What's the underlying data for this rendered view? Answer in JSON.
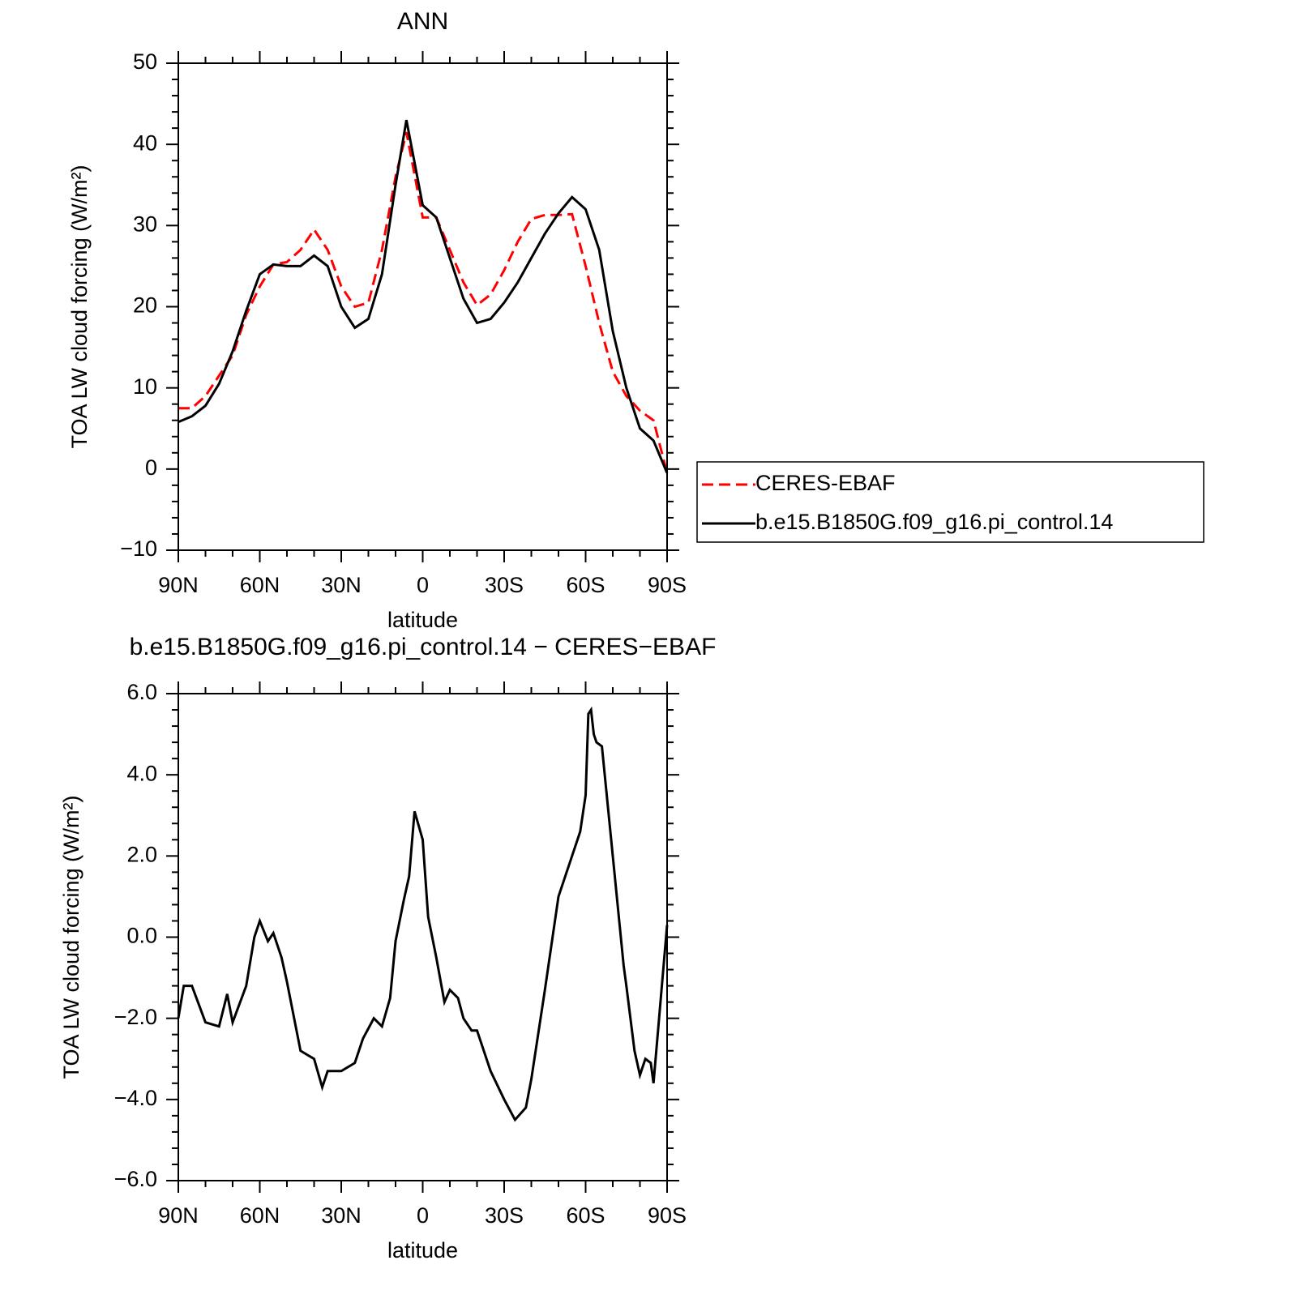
{
  "chart_data": [
    {
      "type": "line",
      "title": "ANN",
      "xlabel": "latitude",
      "ylabel": "TOA LW cloud forcing (W/m²)",
      "x": [
        90,
        85,
        80,
        75,
        70,
        65,
        60,
        55,
        50,
        45,
        40,
        35,
        30,
        25,
        20,
        15,
        10,
        6,
        0,
        -5,
        -10,
        -15,
        -20,
        -25,
        -30,
        -35,
        -40,
        -45,
        -50,
        -55,
        -60,
        -65,
        -70,
        -75,
        -80,
        -85,
        -90
      ],
      "series": [
        {
          "name": "CERES-EBAF",
          "color": "#ff0000",
          "line_style": "dashed",
          "values": [
            7.5,
            7.5,
            9,
            11.5,
            14,
            19,
            22.5,
            25.2,
            25.5,
            27,
            29.5,
            27,
            22.5,
            20,
            20.5,
            27,
            36,
            41.5,
            31,
            31,
            27,
            23,
            20.2,
            21.5,
            24.5,
            28,
            30.8,
            31.3,
            31.3,
            31.4,
            25,
            18,
            12,
            9,
            7.2,
            6,
            -0.5
          ]
        },
        {
          "name": "b.e15.B1850G.f09_g16.pi_control.14",
          "color": "#000000",
          "line_style": "solid",
          "values": [
            5.8,
            6.5,
            7.8,
            10.5,
            14.5,
            19.5,
            24,
            25.2,
            25,
            25,
            26.3,
            25,
            20,
            17.4,
            18.5,
            24,
            35,
            43,
            32.5,
            31,
            26,
            21,
            18,
            18.5,
            20.5,
            23,
            26,
            29,
            31.5,
            33.5,
            32,
            27,
            17,
            10,
            5,
            3.5,
            -0.5
          ]
        }
      ],
      "xlim": [
        90,
        -90
      ],
      "xticks": [
        {
          "value": 90,
          "label": "90N"
        },
        {
          "value": 60,
          "label": "60N"
        },
        {
          "value": 30,
          "label": "30N"
        },
        0,
        {
          "value": -30,
          "label": "30S"
        },
        {
          "value": -60,
          "label": "60S"
        },
        {
          "value": -90,
          "label": "90S"
        }
      ],
      "ylim": [
        -10,
        50
      ],
      "yticks": [
        {
          "value": -10,
          "label": "−10"
        },
        0,
        10,
        20,
        30,
        40,
        50
      ],
      "grid": false,
      "legend": "right"
    },
    {
      "type": "line",
      "title": "b.e15.B1850G.f09_g16.pi_control.14 − CERES−EBAF",
      "xlabel": "latitude",
      "ylabel": "TOA LW cloud forcing (W/m²)",
      "x": [
        90,
        88,
        85,
        80,
        75,
        72,
        70,
        65,
        62,
        60,
        57,
        55,
        52,
        50,
        45,
        40,
        37,
        35,
        30,
        25,
        22,
        18,
        15,
        12,
        10,
        7,
        5,
        3,
        0,
        -2,
        -5,
        -8,
        -10,
        -13,
        -15,
        -18,
        -20,
        -25,
        -30,
        -34,
        -38,
        -40,
        -45,
        -50,
        -55,
        -58,
        -60,
        -61,
        -62,
        -63,
        -64,
        -66,
        -70,
        -74,
        -75,
        -78,
        -80,
        -82,
        -84,
        -85,
        -90
      ],
      "series": [
        {
          "name": "b.e15.B1850G.f09_g16.pi_control.14 − CERES−EBAF",
          "color": "#000000",
          "line_style": "solid",
          "values": [
            -2,
            -1.2,
            -1.2,
            -2.1,
            -2.2,
            -1.4,
            -2.1,
            -1.2,
            0,
            0.4,
            -0.1,
            0.1,
            -0.5,
            -1.1,
            -2.8,
            -3,
            -3.7,
            -3.3,
            -3.3,
            -3.1,
            -2.5,
            -2,
            -2.2,
            -1.5,
            -0.1,
            0.9,
            1.5,
            3.1,
            2.4,
            0.5,
            -0.5,
            -1.6,
            -1.3,
            -1.5,
            -2,
            -2.3,
            -2.3,
            -3.3,
            -4,
            -4.5,
            -4.2,
            -3.5,
            -1.3,
            1,
            2,
            2.6,
            3.5,
            5.5,
            5.6,
            5,
            4.8,
            4.7,
            2,
            -0.7,
            -1.2,
            -2.8,
            -3.4,
            -3,
            -3.1,
            -3.6,
            0.3
          ]
        }
      ],
      "xlim": [
        90,
        -90
      ],
      "xticks": [
        {
          "value": 90,
          "label": "90N"
        },
        {
          "value": 60,
          "label": "60N"
        },
        {
          "value": 30,
          "label": "30N"
        },
        0,
        {
          "value": -30,
          "label": "30S"
        },
        {
          "value": -60,
          "label": "60S"
        },
        {
          "value": -90,
          "label": "90S"
        }
      ],
      "ylim": [
        -6,
        6
      ],
      "yticks": [
        {
          "value": -6,
          "label": "−6.0"
        },
        {
          "value": -4,
          "label": "−4.0"
        },
        {
          "value": -2,
          "label": "−2.0"
        },
        {
          "value": 0,
          "label": "0.0"
        },
        {
          "value": 2,
          "label": "2.0"
        },
        {
          "value": 4,
          "label": "4.0"
        },
        {
          "value": 6,
          "label": "6.0"
        }
      ],
      "grid": false
    }
  ]
}
